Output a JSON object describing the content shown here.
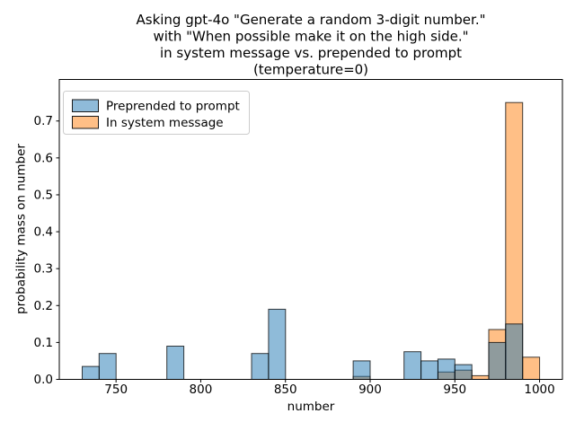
{
  "chart_data": {
    "type": "histogram",
    "title_lines": [
      "Asking gpt-4o \"Generate a random 3-digit number.\"",
      "with \"When possible make it on the high side.\"",
      "in system message vs. prepended to prompt",
      "(temperature=0)"
    ],
    "xlabel": "number",
    "ylabel": "probability mass on number",
    "xlim": [
      716.5,
      1013.5
    ],
    "ylim": [
      0,
      0.8125
    ],
    "xticks": [
      750,
      800,
      850,
      900,
      950,
      1000
    ],
    "yticks": [
      0.0,
      0.1,
      0.2,
      0.3,
      0.4,
      0.5,
      0.6,
      0.7
    ],
    "bin_width": 10,
    "grid": false,
    "legend_position": "upper-left",
    "bar_edge_color": "rgba(0,0,0,0.75)",
    "overlap_note_color_gray": "#8f9b9d",
    "draw_order": [
      1,
      0
    ],
    "series": [
      {
        "name": "Preprended to prompt",
        "fill": "rgba(31,119,180,0.5)",
        "swatch": "#8fbbd9",
        "bins": [
          {
            "from": 730,
            "to": 740,
            "p": 0.035
          },
          {
            "from": 740,
            "to": 750,
            "p": 0.07
          },
          {
            "from": 780,
            "to": 790,
            "p": 0.09
          },
          {
            "from": 830,
            "to": 840,
            "p": 0.07
          },
          {
            "from": 840,
            "to": 850,
            "p": 0.19
          },
          {
            "from": 890,
            "to": 900,
            "p": 0.05
          },
          {
            "from": 920,
            "to": 930,
            "p": 0.075
          },
          {
            "from": 930,
            "to": 940,
            "p": 0.05
          },
          {
            "from": 940,
            "to": 950,
            "p": 0.055
          },
          {
            "from": 950,
            "to": 960,
            "p": 0.04
          },
          {
            "from": 970,
            "to": 980,
            "p": 0.1
          },
          {
            "from": 980,
            "to": 990,
            "p": 0.15
          }
        ]
      },
      {
        "name": "In system message",
        "fill": "rgba(255,127,14,0.5)",
        "swatch": "#ffbf86",
        "bins": [
          {
            "from": 890,
            "to": 900,
            "p": 0.008
          },
          {
            "from": 940,
            "to": 950,
            "p": 0.02
          },
          {
            "from": 950,
            "to": 960,
            "p": 0.025
          },
          {
            "from": 960,
            "to": 970,
            "p": 0.01
          },
          {
            "from": 970,
            "to": 980,
            "p": 0.135
          },
          {
            "from": 980,
            "to": 990,
            "p": 0.75
          },
          {
            "from": 990,
            "to": 1000,
            "p": 0.06
          }
        ]
      }
    ]
  }
}
